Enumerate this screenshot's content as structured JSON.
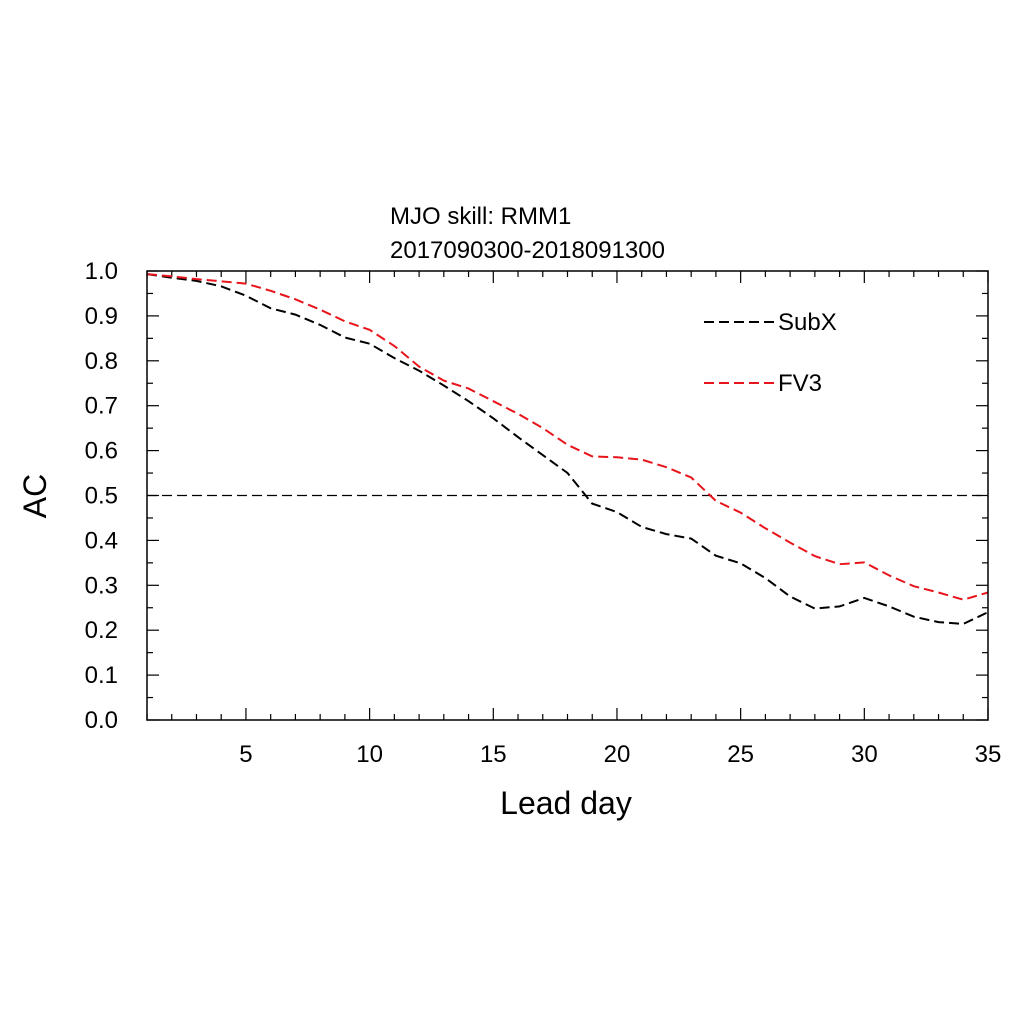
{
  "chart_data": {
    "type": "line",
    "title": "MJO skill: RMM1",
    "subtitle": "2017090300-2018091300",
    "xlabel": "Lead day",
    "ylabel": "AC",
    "xlim": [
      1,
      35
    ],
    "ylim": [
      0.0,
      1.0
    ],
    "x_ticks": [
      5,
      10,
      15,
      20,
      25,
      30,
      35
    ],
    "y_ticks": [
      "0.0",
      "0.1",
      "0.2",
      "0.3",
      "0.4",
      "0.5",
      "0.6",
      "0.7",
      "0.8",
      "0.9",
      "1.0"
    ],
    "grid": false,
    "legend_position": "top-right",
    "reference_line": {
      "y": 0.5,
      "color": "#000000",
      "style": "dashed"
    },
    "x": [
      1,
      2,
      3,
      4,
      5,
      6,
      7,
      8,
      9,
      10,
      11,
      12,
      13,
      14,
      15,
      16,
      17,
      18,
      19,
      20,
      21,
      22,
      23,
      24,
      25,
      26,
      27,
      28,
      29,
      30,
      31,
      32,
      33,
      34,
      35
    ],
    "series": [
      {
        "name": "SubX",
        "color": "#000000",
        "style": "dashed",
        "values": [
          0.993,
          0.985,
          0.978,
          0.966,
          0.945,
          0.917,
          0.903,
          0.88,
          0.852,
          0.838,
          0.806,
          0.778,
          0.745,
          0.71,
          0.672,
          0.63,
          0.59,
          0.55,
          0.482,
          0.463,
          0.43,
          0.414,
          0.404,
          0.366,
          0.349,
          0.316,
          0.275,
          0.248,
          0.253,
          0.272,
          0.253,
          0.23,
          0.218,
          0.214,
          0.24
        ]
      },
      {
        "name": "FV3",
        "color": "#e8141b",
        "style": "dashed",
        "values": [
          0.993,
          0.988,
          0.982,
          0.977,
          0.972,
          0.956,
          0.937,
          0.914,
          0.888,
          0.869,
          0.833,
          0.787,
          0.756,
          0.738,
          0.71,
          0.682,
          0.65,
          0.613,
          0.587,
          0.585,
          0.58,
          0.563,
          0.54,
          0.488,
          0.462,
          0.427,
          0.395,
          0.365,
          0.347,
          0.351,
          0.322,
          0.298,
          0.284,
          0.268,
          0.284
        ]
      }
    ]
  }
}
